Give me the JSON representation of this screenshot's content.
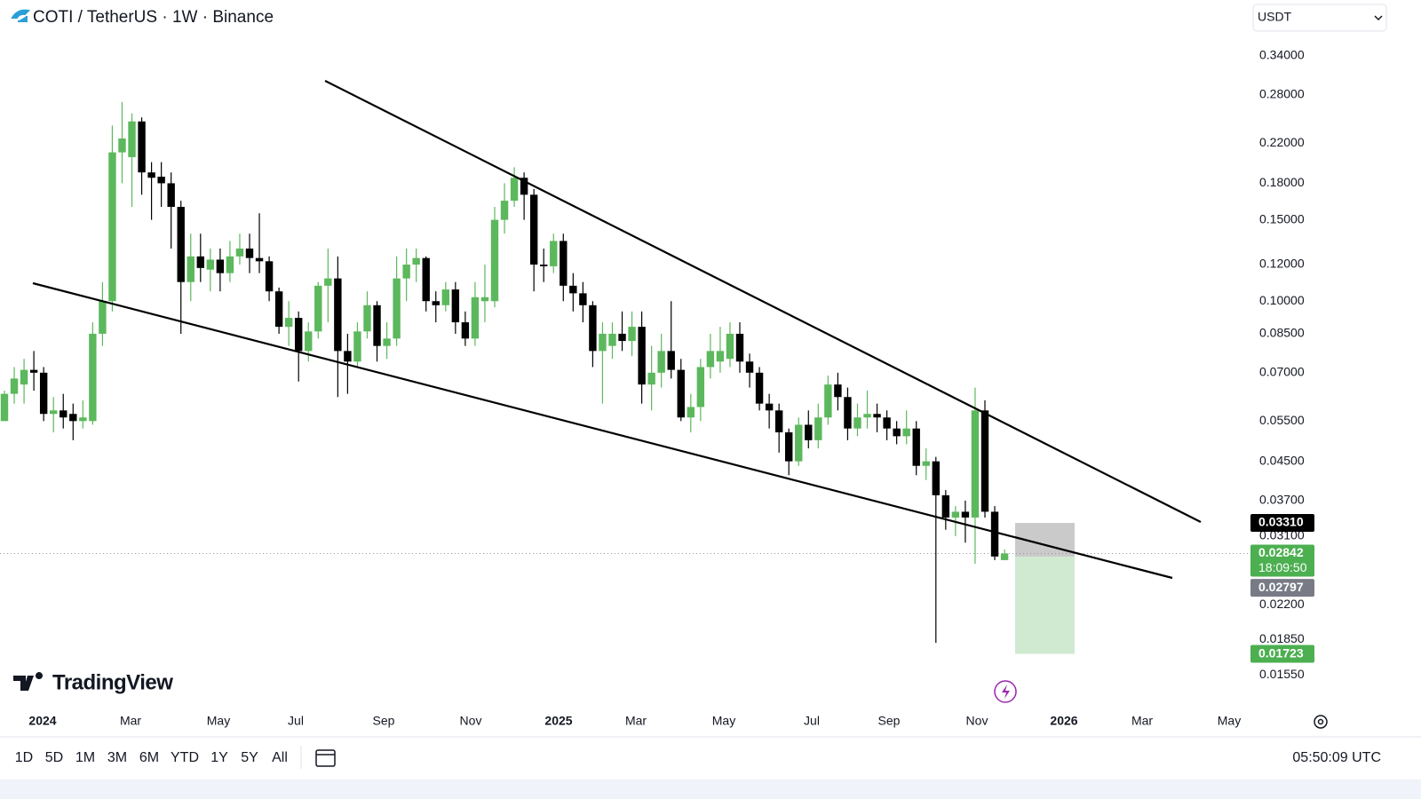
{
  "header": {
    "title": "COTI / TetherUS · 1W · Binance",
    "currency": "USDT"
  },
  "chart_data": {
    "type": "candlestick",
    "log_scale": true,
    "up_color": "#5cb85c",
    "down_color": "#000000",
    "ylim": [
      0.0136,
      0.376
    ],
    "yticks": [
      {
        "value": 0.34,
        "label": "0.34000"
      },
      {
        "value": 0.28,
        "label": "0.28000"
      },
      {
        "value": 0.22,
        "label": "0.22000"
      },
      {
        "value": 0.18,
        "label": "0.18000"
      },
      {
        "value": 0.15,
        "label": "0.15000"
      },
      {
        "value": 0.12,
        "label": "0.12000"
      },
      {
        "value": 0.1,
        "label": "0.10000"
      },
      {
        "value": 0.085,
        "label": "0.08500"
      },
      {
        "value": 0.07,
        "label": "0.07000"
      },
      {
        "value": 0.055,
        "label": "0.05500"
      },
      {
        "value": 0.045,
        "label": "0.04500"
      },
      {
        "value": 0.037,
        "label": "0.03700"
      },
      {
        "value": 0.031,
        "label": "0.03100"
      },
      {
        "value": 0.022,
        "label": "0.02200"
      },
      {
        "value": 0.0185,
        "label": "0.01850"
      },
      {
        "value": 0.0155,
        "label": "0.01550"
      }
    ],
    "x_labels": [
      "2024",
      "Mar",
      "May",
      "Jul",
      "Sep",
      "Nov",
      "2025",
      "Mar",
      "May",
      "Jul",
      "Sep",
      "Nov",
      "2026",
      "Mar",
      "May"
    ],
    "open": [
      0.055,
      0.063,
      0.066,
      0.071,
      0.07,
      0.057,
      0.058,
      0.057,
      0.055,
      0.055,
      0.085,
      0.1,
      0.21,
      0.205,
      0.245,
      0.19,
      0.186,
      0.18,
      0.16,
      0.11,
      0.125,
      0.117,
      0.123,
      0.115,
      0.125,
      0.13,
      0.124,
      0.122,
      0.105,
      0.088,
      0.092,
      0.078,
      0.086,
      0.108,
      0.112,
      0.078,
      0.074,
      0.086,
      0.098,
      0.08,
      0.083,
      0.112,
      0.12,
      0.124,
      0.1,
      0.098,
      0.106,
      0.09,
      0.083,
      0.1,
      0.1,
      0.15,
      0.165,
      0.185,
      0.17,
      0.12,
      0.119,
      0.135,
      0.108,
      0.104,
      0.098,
      0.078,
      0.08,
      0.085,
      0.082,
      0.088,
      0.066,
      0.07,
      0.078,
      0.071,
      0.056,
      0.059,
      0.072,
      0.074,
      0.075,
      0.085,
      0.074,
      0.07,
      0.06,
      0.058,
      0.052,
      0.045,
      0.054,
      0.05,
      0.056,
      0.066,
      0.062,
      0.053,
      0.056,
      0.057,
      0.056,
      0.053,
      0.051,
      0.053,
      0.044,
      0.045,
      0.038,
      0.034,
      0.035,
      0.034,
      0.058,
      0.035,
      0.0275
    ],
    "high": [
      0.064,
      0.072,
      0.075,
      0.078,
      0.072,
      0.062,
      0.063,
      0.06,
      0.061,
      0.09,
      0.11,
      0.24,
      0.27,
      0.255,
      0.25,
      0.2,
      0.2,
      0.19,
      0.165,
      0.14,
      0.14,
      0.13,
      0.13,
      0.135,
      0.14,
      0.14,
      0.155,
      0.125,
      0.107,
      0.1,
      0.095,
      0.09,
      0.11,
      0.13,
      0.125,
      0.085,
      0.09,
      0.105,
      0.1,
      0.09,
      0.125,
      0.13,
      0.13,
      0.125,
      0.105,
      0.11,
      0.11,
      0.095,
      0.11,
      0.12,
      0.16,
      0.18,
      0.195,
      0.19,
      0.175,
      0.13,
      0.14,
      0.14,
      0.115,
      0.11,
      0.1,
      0.09,
      0.09,
      0.095,
      0.095,
      0.095,
      0.08,
      0.085,
      0.1,
      0.075,
      0.063,
      0.075,
      0.085,
      0.088,
      0.09,
      0.09,
      0.077,
      0.072,
      0.063,
      0.06,
      0.053,
      0.056,
      0.058,
      0.06,
      0.069,
      0.07,
      0.065,
      0.06,
      0.064,
      0.06,
      0.058,
      0.055,
      0.058,
      0.055,
      0.048,
      0.046,
      0.039,
      0.036,
      0.037,
      0.065,
      0.061,
      0.036,
      0.029
    ],
    "low": [
      0.055,
      0.06,
      0.06,
      0.064,
      0.055,
      0.052,
      0.053,
      0.05,
      0.053,
      0.054,
      0.08,
      0.095,
      0.18,
      0.16,
      0.17,
      0.15,
      0.16,
      0.13,
      0.085,
      0.1,
      0.11,
      0.105,
      0.105,
      0.11,
      0.12,
      0.115,
      0.115,
      0.1,
      0.085,
      0.08,
      0.067,
      0.074,
      0.083,
      0.09,
      0.062,
      0.063,
      0.072,
      0.083,
      0.074,
      0.075,
      0.08,
      0.1,
      0.11,
      0.095,
      0.09,
      0.095,
      0.085,
      0.08,
      0.08,
      0.09,
      0.097,
      0.14,
      0.16,
      0.15,
      0.105,
      0.11,
      0.115,
      0.1,
      0.095,
      0.09,
      0.072,
      0.06,
      0.075,
      0.078,
      0.076,
      0.06,
      0.058,
      0.065,
      0.068,
      0.055,
      0.052,
      0.055,
      0.068,
      0.07,
      0.072,
      0.07,
      0.065,
      0.058,
      0.053,
      0.047,
      0.042,
      0.044,
      0.048,
      0.048,
      0.054,
      0.058,
      0.05,
      0.051,
      0.053,
      0.052,
      0.05,
      0.049,
      0.049,
      0.042,
      0.041,
      0.0182,
      0.032,
      0.031,
      0.03,
      0.027,
      0.034,
      0.0275,
      0.0275
    ],
    "close": [
      0.063,
      0.068,
      0.071,
      0.07,
      0.057,
      0.058,
      0.056,
      0.055,
      0.056,
      0.085,
      0.1,
      0.21,
      0.225,
      0.245,
      0.19,
      0.185,
      0.18,
      0.16,
      0.11,
      0.125,
      0.118,
      0.123,
      0.115,
      0.125,
      0.13,
      0.124,
      0.122,
      0.105,
      0.088,
      0.092,
      0.078,
      0.086,
      0.108,
      0.112,
      0.078,
      0.074,
      0.086,
      0.098,
      0.08,
      0.083,
      0.112,
      0.12,
      0.124,
      0.1,
      0.098,
      0.106,
      0.09,
      0.083,
      0.102,
      0.102,
      0.15,
      0.165,
      0.185,
      0.17,
      0.12,
      0.119,
      0.135,
      0.108,
      0.104,
      0.098,
      0.078,
      0.085,
      0.085,
      0.082,
      0.088,
      0.066,
      0.07,
      0.078,
      0.071,
      0.056,
      0.059,
      0.072,
      0.078,
      0.078,
      0.085,
      0.074,
      0.07,
      0.06,
      0.058,
      0.052,
      0.045,
      0.054,
      0.05,
      0.056,
      0.066,
      0.062,
      0.053,
      0.056,
      0.057,
      0.056,
      0.053,
      0.051,
      0.053,
      0.044,
      0.045,
      0.038,
      0.034,
      0.035,
      0.034,
      0.058,
      0.035,
      0.028,
      0.02842
    ],
    "position": {
      "stop": {
        "value": 0.0331,
        "label": "0.03310"
      },
      "entry": {
        "value": 0.02797,
        "label": "0.02797"
      },
      "target": {
        "value": 0.01723,
        "label": "0.01723"
      }
    },
    "last_price": {
      "value": 0.02842,
      "label": "0.02842"
    },
    "countdown": "18:09:50"
  },
  "brand": "TradingView",
  "toolbar": {
    "ranges": [
      "1D",
      "5D",
      "1M",
      "3M",
      "6M",
      "YTD",
      "1Y",
      "5Y",
      "All"
    ],
    "clock": "05:50:09 UTC"
  }
}
